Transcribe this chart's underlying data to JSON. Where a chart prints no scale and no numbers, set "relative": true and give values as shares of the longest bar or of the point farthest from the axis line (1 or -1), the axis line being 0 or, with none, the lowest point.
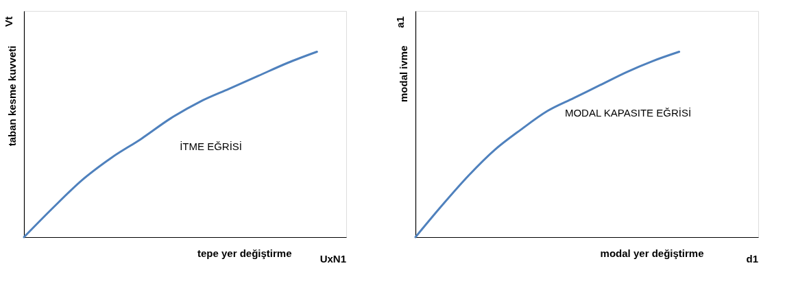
{
  "chart_data": [
    {
      "type": "line",
      "relative": true,
      "xlabel": "tepe yer değiştirme",
      "ylabel": "taban kesme kuvveti",
      "annotations": [
        "Vt",
        "UxN1",
        "İTME EĞRİSİ"
      ],
      "categories": [
        null,
        null,
        null,
        null,
        null,
        null,
        null,
        null,
        null,
        null,
        null,
        null
      ],
      "series": [
        {
          "color": "#4f81bd",
          "values": [
            0,
            0.16,
            0.31,
            0.43,
            0.53,
            0.64,
            0.73,
            0.8,
            0.87,
            0.94,
            1,
            null
          ]
        }
      ],
      "grid": false,
      "marker": "none",
      "line_style": "solid"
    },
    {
      "type": "line",
      "relative": true,
      "xlabel": "modal yer değiştirme",
      "ylabel": "modal ivme",
      "annotations": [
        "a1",
        "d1",
        "MODAL KAPASITE EĞRİSİ"
      ],
      "categories": [
        null,
        null,
        null,
        null,
        null,
        null,
        null,
        null,
        null,
        null,
        null,
        null,
        null,
        null
      ],
      "series": [
        {
          "color": "#4f81bd",
          "values": [
            0,
            0.17,
            0.33,
            0.47,
            0.58,
            0.68,
            0.75,
            0.82,
            0.89,
            0.95,
            1,
            null,
            null,
            null
          ]
        }
      ],
      "grid": false,
      "marker": "none",
      "line_style": "solid"
    }
  ]
}
